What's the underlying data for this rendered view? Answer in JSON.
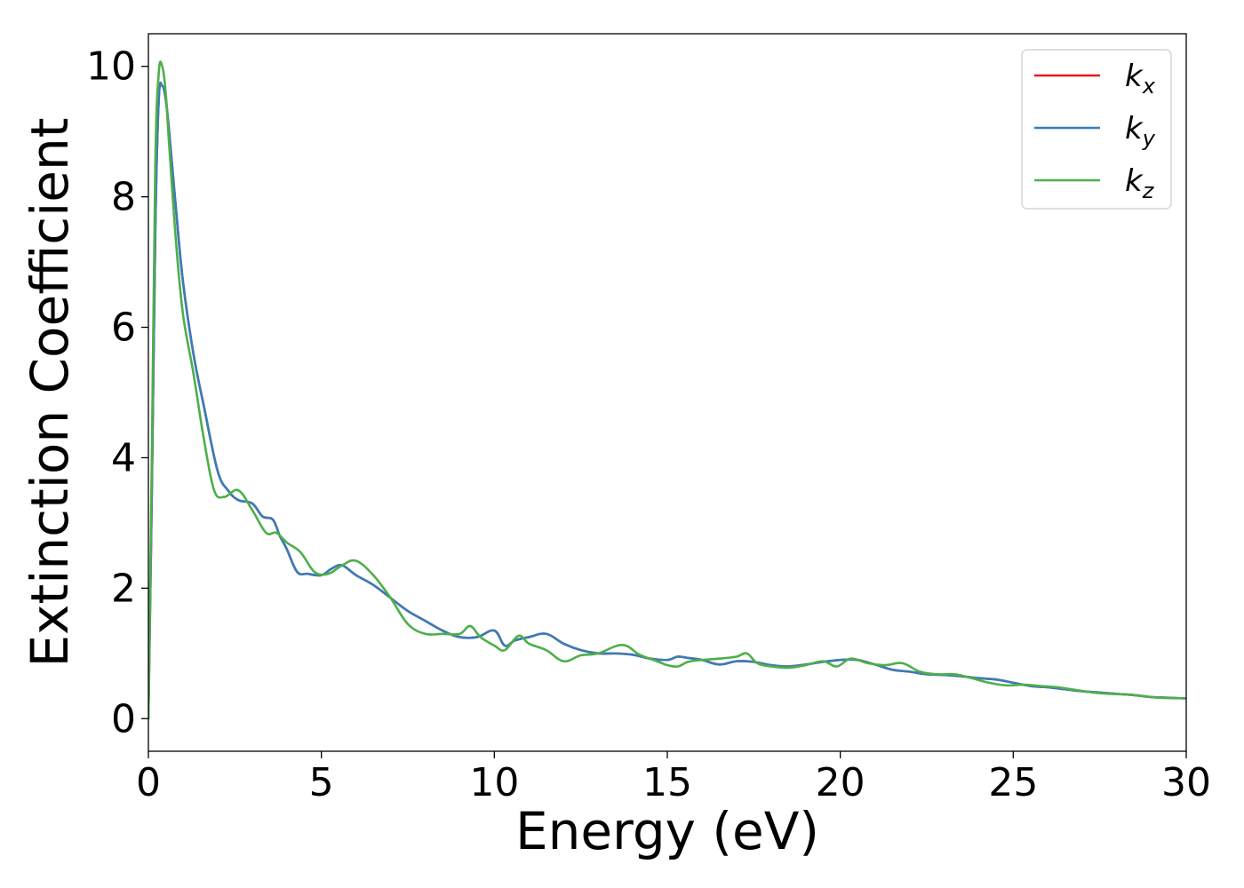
{
  "chart_data": {
    "type": "line",
    "xlabel": "Energy (eV)",
    "ylabel": "Extinction Coefficient",
    "xlim": [
      0,
      30
    ],
    "ylim": [
      -0.5,
      10.5
    ],
    "xticks": [
      0,
      5,
      10,
      15,
      20,
      25,
      30
    ],
    "yticks": [
      0,
      2,
      4,
      6,
      8,
      10
    ],
    "grid": false,
    "legend_position": "top-right",
    "series": [
      {
        "name": "k_x",
        "label_base": "k",
        "label_sub": "x",
        "color": "#e41a1c",
        "x": [
          0.0,
          0.1,
          0.2,
          0.3,
          0.4,
          0.5,
          0.6,
          0.8,
          1.0,
          1.3,
          1.6,
          2.0,
          2.3,
          2.6,
          3.0,
          3.3,
          3.6,
          3.8,
          4.0,
          4.3,
          4.6,
          5.0,
          5.3,
          5.6,
          6.0,
          6.5,
          7.0,
          7.5,
          8.0,
          8.5,
          9.0,
          9.5,
          10.0,
          10.3,
          10.6,
          11.0,
          11.5,
          12.0,
          12.5,
          13.0,
          13.5,
          14.0,
          14.5,
          15.0,
          15.3,
          15.6,
          16.0,
          16.5,
          17.0,
          17.5,
          18.0,
          18.5,
          19.0,
          19.5,
          20.0,
          20.5,
          21.0,
          21.5,
          22.0,
          22.5,
          23.0,
          23.5,
          24.0,
          24.5,
          25.0,
          25.5,
          26.0,
          26.5,
          27.0,
          27.5,
          28.0,
          28.5,
          29.0,
          29.5,
          30.0
        ],
        "y": [
          0.0,
          3.5,
          7.5,
          9.5,
          9.7,
          9.5,
          9.0,
          7.8,
          6.7,
          5.6,
          4.8,
          3.8,
          3.5,
          3.35,
          3.3,
          3.1,
          3.05,
          2.8,
          2.6,
          2.25,
          2.22,
          2.2,
          2.3,
          2.35,
          2.2,
          2.05,
          1.85,
          1.65,
          1.5,
          1.35,
          1.25,
          1.25,
          1.35,
          1.12,
          1.2,
          1.25,
          1.3,
          1.15,
          1.05,
          1.0,
          1.0,
          0.98,
          0.92,
          0.9,
          0.95,
          0.93,
          0.9,
          0.83,
          0.88,
          0.87,
          0.82,
          0.8,
          0.83,
          0.87,
          0.9,
          0.9,
          0.83,
          0.75,
          0.72,
          0.68,
          0.67,
          0.65,
          0.62,
          0.6,
          0.55,
          0.5,
          0.48,
          0.45,
          0.42,
          0.4,
          0.38,
          0.36,
          0.33,
          0.32,
          0.31
        ]
      },
      {
        "name": "k_y",
        "label_base": "k",
        "label_sub": "y",
        "color": "#377eb8",
        "x": [
          0.0,
          0.1,
          0.2,
          0.3,
          0.4,
          0.5,
          0.6,
          0.8,
          1.0,
          1.3,
          1.6,
          2.0,
          2.3,
          2.6,
          3.0,
          3.3,
          3.6,
          3.8,
          4.0,
          4.3,
          4.6,
          5.0,
          5.3,
          5.6,
          6.0,
          6.5,
          7.0,
          7.5,
          8.0,
          8.5,
          9.0,
          9.5,
          10.0,
          10.3,
          10.6,
          11.0,
          11.5,
          12.0,
          12.5,
          13.0,
          13.5,
          14.0,
          14.5,
          15.0,
          15.3,
          15.6,
          16.0,
          16.5,
          17.0,
          17.5,
          18.0,
          18.5,
          19.0,
          19.5,
          20.0,
          20.5,
          21.0,
          21.5,
          22.0,
          22.5,
          23.0,
          23.5,
          24.0,
          24.5,
          25.0,
          25.5,
          26.0,
          26.5,
          27.0,
          27.5,
          28.0,
          28.5,
          29.0,
          29.5,
          30.0
        ],
        "y": [
          0.0,
          3.5,
          7.5,
          9.5,
          9.7,
          9.5,
          9.0,
          7.8,
          6.7,
          5.6,
          4.8,
          3.8,
          3.5,
          3.35,
          3.3,
          3.1,
          3.05,
          2.8,
          2.6,
          2.25,
          2.22,
          2.2,
          2.3,
          2.35,
          2.2,
          2.05,
          1.85,
          1.65,
          1.5,
          1.35,
          1.25,
          1.25,
          1.35,
          1.12,
          1.2,
          1.25,
          1.3,
          1.15,
          1.05,
          1.0,
          1.0,
          0.98,
          0.92,
          0.9,
          0.95,
          0.93,
          0.9,
          0.83,
          0.88,
          0.87,
          0.82,
          0.8,
          0.83,
          0.87,
          0.9,
          0.9,
          0.83,
          0.75,
          0.72,
          0.68,
          0.67,
          0.65,
          0.62,
          0.6,
          0.55,
          0.5,
          0.48,
          0.45,
          0.42,
          0.4,
          0.38,
          0.36,
          0.33,
          0.32,
          0.31
        ]
      },
      {
        "name": "k_z",
        "label_base": "k",
        "label_sub": "z",
        "color": "#4daf4a",
        "x": [
          0.0,
          0.1,
          0.2,
          0.3,
          0.4,
          0.5,
          0.6,
          0.8,
          1.0,
          1.3,
          1.6,
          1.9,
          2.2,
          2.6,
          3.0,
          3.4,
          3.7,
          4.0,
          4.4,
          4.8,
          5.2,
          5.6,
          6.0,
          6.5,
          7.0,
          7.5,
          8.0,
          8.5,
          9.0,
          9.3,
          9.6,
          10.0,
          10.3,
          10.7,
          11.0,
          11.5,
          12.0,
          12.5,
          13.0,
          13.7,
          14.2,
          14.7,
          15.0,
          15.3,
          15.6,
          16.0,
          16.5,
          17.0,
          17.3,
          17.6,
          18.0,
          18.5,
          19.0,
          19.5,
          19.9,
          20.3,
          20.8,
          21.3,
          21.8,
          22.3,
          22.8,
          23.3,
          23.8,
          24.3,
          24.8,
          25.3,
          25.8,
          26.3,
          26.8,
          27.3,
          27.8,
          28.3,
          28.8,
          29.3,
          30.0
        ],
        "y": [
          0.0,
          4.0,
          8.5,
          9.9,
          10.0,
          9.6,
          8.8,
          7.3,
          6.2,
          5.3,
          4.3,
          3.5,
          3.4,
          3.5,
          3.2,
          2.85,
          2.85,
          2.7,
          2.55,
          2.25,
          2.22,
          2.35,
          2.42,
          2.2,
          1.85,
          1.45,
          1.3,
          1.3,
          1.3,
          1.42,
          1.25,
          1.12,
          1.05,
          1.27,
          1.15,
          1.05,
          0.88,
          0.97,
          1.0,
          1.13,
          0.98,
          0.88,
          0.82,
          0.8,
          0.87,
          0.9,
          0.92,
          0.95,
          1.0,
          0.85,
          0.8,
          0.78,
          0.82,
          0.88,
          0.8,
          0.92,
          0.85,
          0.82,
          0.85,
          0.72,
          0.68,
          0.68,
          0.62,
          0.55,
          0.51,
          0.52,
          0.5,
          0.48,
          0.44,
          0.4,
          0.38,
          0.37,
          0.34,
          0.32,
          0.31
        ]
      }
    ]
  }
}
